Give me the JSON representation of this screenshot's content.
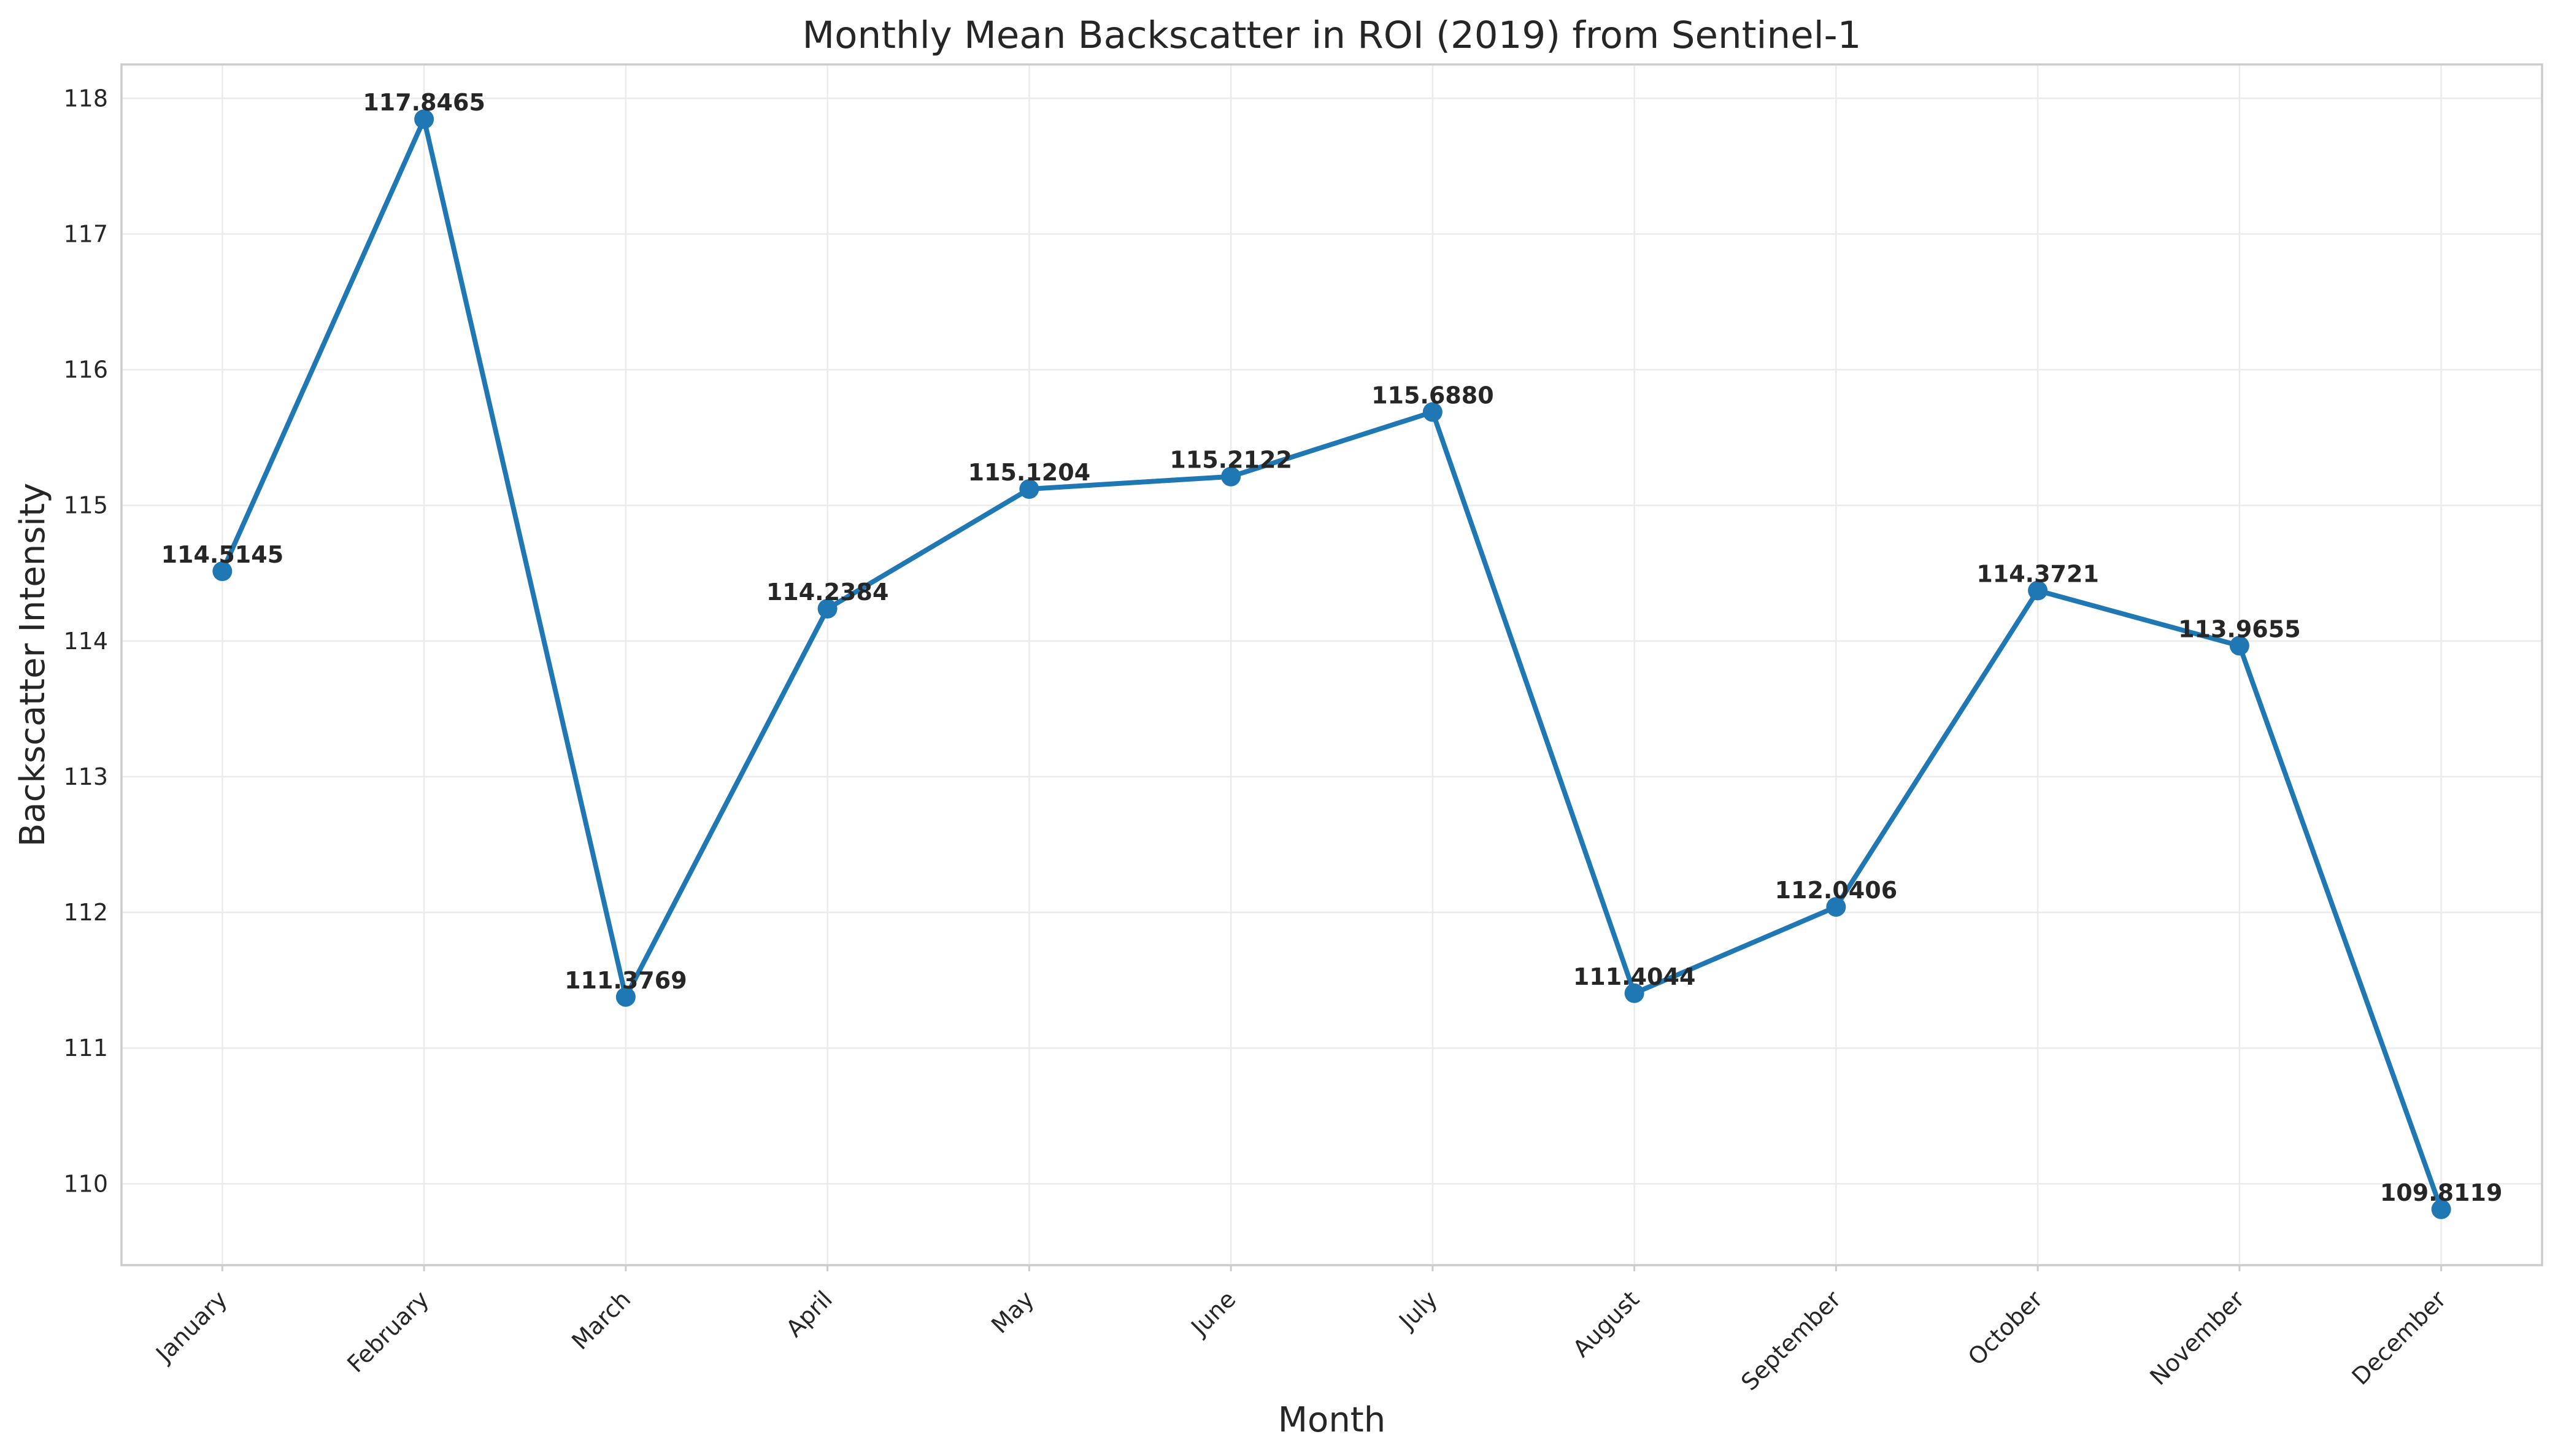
{
  "chart_data": {
    "type": "line",
    "title": "Monthly Mean Backscatter in ROI (2019) from Sentinel-1",
    "xlabel": "Month",
    "ylabel": "Backscatter Intensity",
    "categories": [
      "January",
      "February",
      "March",
      "April",
      "May",
      "June",
      "July",
      "August",
      "September",
      "October",
      "November",
      "December"
    ],
    "series": [
      {
        "values": [
          114.5145,
          117.8465,
          111.3769,
          114.2384,
          115.1204,
          115.2122,
          115.688,
          111.4044,
          112.0406,
          114.3721,
          113.9655,
          109.8119
        ],
        "data_labels": [
          "114.5145",
          "117.8465",
          "111.3769",
          "114.2384",
          "115.1204",
          "115.2122",
          "115.6880",
          "111.4044",
          "112.0406",
          "114.3721",
          "113.9655",
          "109.8119"
        ]
      }
    ],
    "ylim": [
      109.4,
      118.25
    ],
    "yticks": [
      110,
      111,
      112,
      113,
      114,
      115,
      116,
      117,
      118
    ],
    "grid": true,
    "line_color": "#1f77b4"
  }
}
